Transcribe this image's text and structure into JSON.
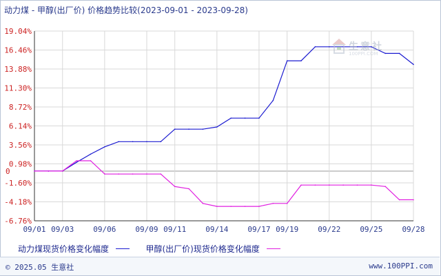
{
  "title": "动力煤 - 甲醇(出厂价) 价格趋势比较(2023-09-01 - 2023-09-28)",
  "watermark": {
    "name": "生意社",
    "url": "100PPI.COM"
  },
  "footer": {
    "copyright": "© 2025.05 生意社",
    "site": "www.100PPI.com"
  },
  "colors": {
    "series1": "#1a1ad0",
    "series2": "#e01ee0",
    "ytick": "#cc2222",
    "xtick": "#2a3a8c",
    "grid": "#d8d8d8",
    "axis": "#333333"
  },
  "chart_data": {
    "type": "line",
    "title": "动力煤 - 甲醇(出厂价) 价格趋势比较(2023-09-01 - 2023-09-28)",
    "xlabel": "",
    "ylabel": "",
    "ylim": [
      -6.76,
      19.04
    ],
    "yticks": [
      "19.04%",
      "16.46%",
      "13.88%",
      "11.30%",
      "8.72%",
      "6.14%",
      "3.56%",
      "0.98%",
      "-1.60%",
      "-4.18%",
      "-6.76%"
    ],
    "ytick_values": [
      19.04,
      16.46,
      13.88,
      11.3,
      8.72,
      6.14,
      3.56,
      0.98,
      -1.6,
      -4.18,
      -6.76
    ],
    "zero_label": "0",
    "xticks": [
      "09/01",
      "09/03",
      "09/06",
      "09/09",
      "09/11",
      "09/14",
      "09/17",
      "09/19",
      "09/22",
      "09/25",
      "09/28"
    ],
    "x": [
      "09/01",
      "09/02",
      "09/03",
      "09/04",
      "09/05",
      "09/06",
      "09/07",
      "09/08",
      "09/09",
      "09/10",
      "09/11",
      "09/12",
      "09/13",
      "09/14",
      "09/15",
      "09/16",
      "09/17",
      "09/18",
      "09/19",
      "09/20",
      "09/21",
      "09/22",
      "09/23",
      "09/24",
      "09/25",
      "09/26",
      "09/27",
      "09/28"
    ],
    "grid": true,
    "legend_position": "bottom",
    "series": [
      {
        "name": "动力煤现货价格变化幅度",
        "values": [
          0,
          0,
          0,
          1.2,
          2.3,
          3.3,
          4.0,
          4.0,
          4.0,
          4.0,
          5.7,
          5.7,
          5.7,
          6.0,
          7.2,
          7.2,
          7.2,
          9.6,
          15.0,
          15.0,
          16.9,
          16.9,
          16.9,
          16.9,
          16.9,
          16.0,
          16.0,
          14.5
        ]
      },
      {
        "name": "甲醇(出厂价)现货价格变化幅度",
        "values": [
          0,
          0,
          0,
          1.4,
          1.4,
          -0.4,
          -0.4,
          -0.4,
          -0.4,
          -0.4,
          -2.1,
          -2.4,
          -4.4,
          -4.8,
          -4.8,
          -4.8,
          -4.8,
          -4.4,
          -4.4,
          -1.9,
          -1.9,
          -1.9,
          -1.9,
          -1.9,
          -1.9,
          -2.1,
          -3.9,
          -3.9
        ]
      }
    ]
  }
}
